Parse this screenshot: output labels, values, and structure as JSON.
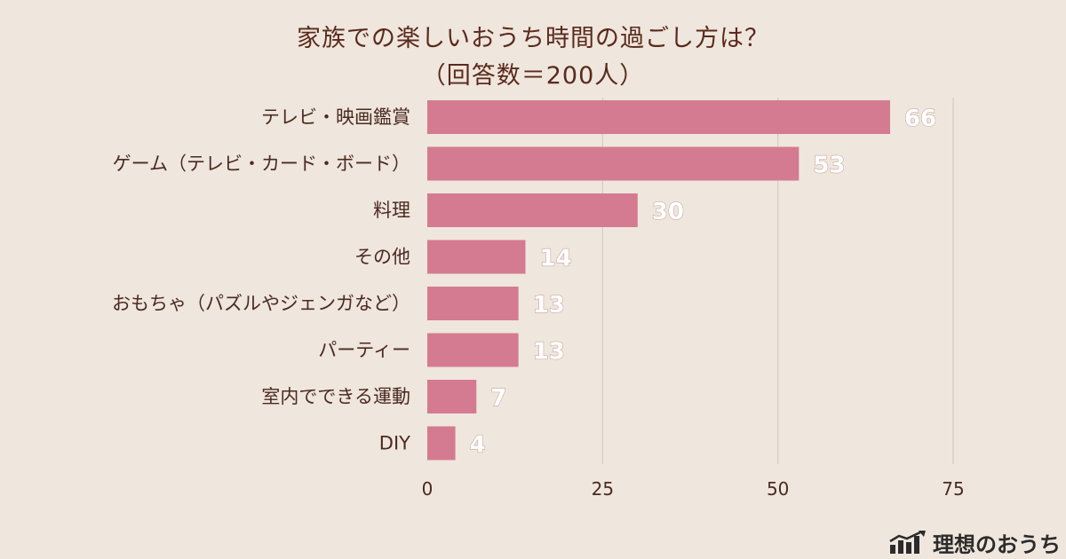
{
  "chart_data": {
    "type": "bar",
    "orientation": "horizontal",
    "title": "家族での楽しいおうち時間の過ごし方は？",
    "subtitle": "（回答数＝200人）",
    "categories": [
      "テレビ・映画鑑賞",
      "ゲーム（テレビ・カード・ボード）",
      "料理",
      "その他",
      "おもちゃ（パズルやジェンガなど）",
      "パーティー",
      "室内でできる運動",
      "DIY"
    ],
    "values": [
      66,
      53,
      30,
      14,
      13,
      13,
      7,
      4
    ],
    "xlim": [
      0,
      75
    ],
    "xticks": [
      0,
      25,
      50,
      75
    ],
    "grid": true,
    "bar_color": "#d47b91"
  },
  "brand": {
    "name": "理想のおうち"
  }
}
